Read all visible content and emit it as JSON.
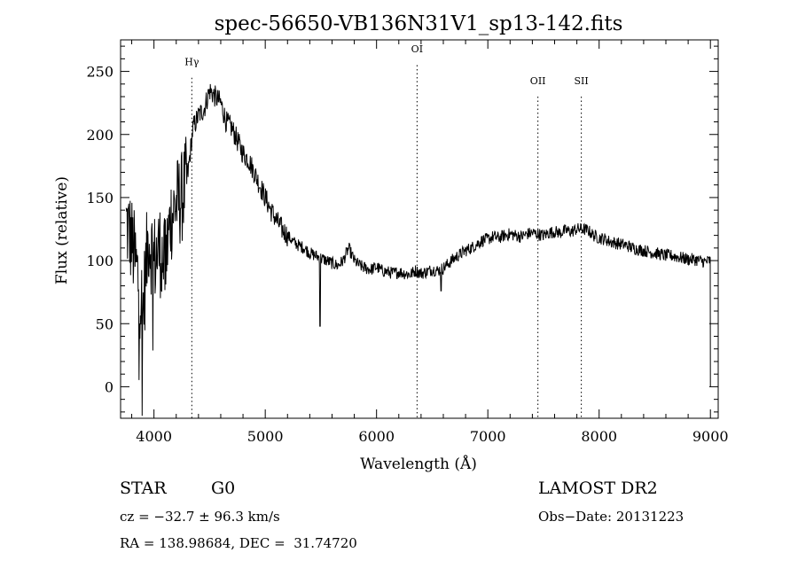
{
  "chart_data": {
    "type": "line",
    "title": "spec-56650-VB136N31V1_sp13-142.fits",
    "xlabel": "Wavelength (Å)",
    "ylabel": "Flux (relative)",
    "xlim": [
      3700,
      9070
    ],
    "ylim": [
      -25,
      275
    ],
    "xticks": [
      4000,
      5000,
      6000,
      7000,
      8000,
      9000
    ],
    "xtick_labels": [
      "4000",
      "5000",
      "6000",
      "7000",
      "8000",
      "9000"
    ],
    "yticks": [
      0,
      50,
      100,
      150,
      200,
      250
    ],
    "ytick_labels": [
      "0",
      "50",
      "100",
      "150",
      "200",
      "250"
    ],
    "grid": false,
    "line_color": "#000000",
    "lines": [
      {
        "label": "Hγ",
        "x": 4340,
        "label_y": 255
      },
      {
        "label": "OI",
        "x": 6364,
        "label_y": 265
      },
      {
        "label": "OII",
        "x": 7450,
        "label_y": 240
      },
      {
        "label": "SII",
        "x": 7840,
        "label_y": 240
      }
    ],
    "series": [
      {
        "x": [
          3750,
          3800,
          3850,
          3900,
          3950,
          4000,
          4050,
          4100,
          4150,
          4200,
          4250,
          4300,
          4350,
          4400,
          4450,
          4500,
          4550,
          4600,
          4650,
          4700,
          4750,
          4800,
          4850,
          4900,
          4950,
          5000,
          5050,
          5100,
          5150,
          5200,
          5250,
          5300,
          5350,
          5400,
          5450,
          5500,
          5550,
          5600,
          5650,
          5700,
          5750,
          5800,
          5850,
          5900,
          5950,
          6000,
          6050,
          6100,
          6150,
          6200,
          6250,
          6300,
          6350,
          6400,
          6450,
          6500,
          6550,
          6600,
          6650,
          6700,
          6750,
          6800,
          6850,
          6900,
          6950,
          7000,
          7050,
          7100,
          7150,
          7200,
          7250,
          7300,
          7350,
          7400,
          7450,
          7500,
          7550,
          7600,
          7650,
          7700,
          7750,
          7800,
          7850,
          7900,
          7950,
          8000,
          8050,
          8100,
          8150,
          8200,
          8250,
          8300,
          8350,
          8400,
          8450,
          8500,
          8550,
          8600,
          8650,
          8700,
          8750,
          8800,
          8850,
          8900,
          8950,
          9000
        ],
        "values": [
          130,
          115,
          90,
          60,
          120,
          100,
          110,
          95,
          135,
          145,
          150,
          165,
          205,
          215,
          220,
          235,
          230,
          225,
          210,
          205,
          195,
          185,
          180,
          170,
          160,
          150,
          140,
          132,
          125,
          120,
          115,
          112,
          110,
          106,
          104,
          102,
          100,
          98,
          96,
          100,
          110,
          100,
          96,
          94,
          93,
          95,
          92,
          91,
          90,
          91,
          90,
          89,
          92,
          90,
          91,
          93,
          92,
          94,
          98,
          102,
          105,
          108,
          110,
          113,
          116,
          117,
          119,
          118,
          120,
          121,
          120,
          119,
          121,
          122,
          121,
          120,
          122,
          123,
          122,
          124,
          123,
          125,
          125,
          124,
          120,
          118,
          117,
          115,
          114,
          113,
          112,
          110,
          109,
          108,
          107,
          106,
          105,
          104,
          104,
          103,
          102,
          101,
          101,
          100,
          99,
          100
        ]
      }
    ]
  },
  "info": {
    "class_label": "STAR",
    "subclass": "G0",
    "survey": "LAMOST DR2",
    "cz_text": "cz = −32.7 ± 96.3 km/s",
    "obs_date": "Obs−Date: 20131223",
    "coords": "RA = 138.98684, DEC =  31.74720"
  }
}
